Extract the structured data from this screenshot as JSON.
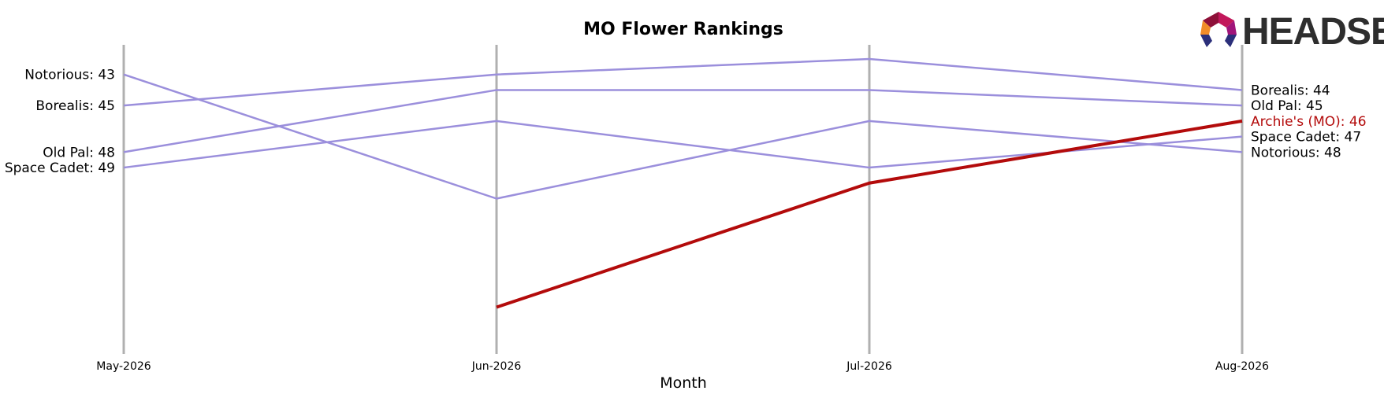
{
  "chart_data": {
    "type": "line",
    "title": "MO Flower Rankings",
    "xlabel": "Month",
    "ylabel": "",
    "ylim": [
      42,
      60
    ],
    "y_inverted": true,
    "grid": false,
    "categories": [
      "May-2026",
      "Jun-2026",
      "Jul-2026",
      "Aug-2026"
    ],
    "series": [
      {
        "name": "Notorious",
        "values": [
          43,
          51,
          46,
          48
        ],
        "color": "#9b8fdc",
        "highlight": false,
        "start_label": "Notorious: 43",
        "end_label": "Notorious: 48"
      },
      {
        "name": "Borealis",
        "values": [
          45,
          43,
          42,
          44
        ],
        "color": "#9b8fdc",
        "highlight": false,
        "start_label": "Borealis: 45",
        "end_label": "Borealis: 44"
      },
      {
        "name": "Old Pal",
        "values": [
          48,
          44,
          44,
          45
        ],
        "color": "#9b8fdc",
        "highlight": false,
        "start_label": "Old Pal: 48",
        "end_label": "Old Pal: 45"
      },
      {
        "name": "Space Cadet",
        "values": [
          49,
          46,
          49,
          47
        ],
        "color": "#9b8fdc",
        "highlight": false,
        "start_label": "Space Cadet: 49",
        "end_label": "Space Cadet: 47"
      },
      {
        "name": "Archie's (MO)",
        "values": [
          null,
          58,
          50,
          46
        ],
        "color": "#b30b0b",
        "highlight": true,
        "start_label": "",
        "end_label": "Archie's (MO): 46"
      }
    ]
  },
  "logo": {
    "text": "HEADSET",
    "icon": "headset-logo-icon"
  },
  "colors": {
    "axis": "#b0b0b0",
    "muted_line": "#9b8fdc",
    "highlight_line": "#b30b0b",
    "text": "#000000"
  }
}
